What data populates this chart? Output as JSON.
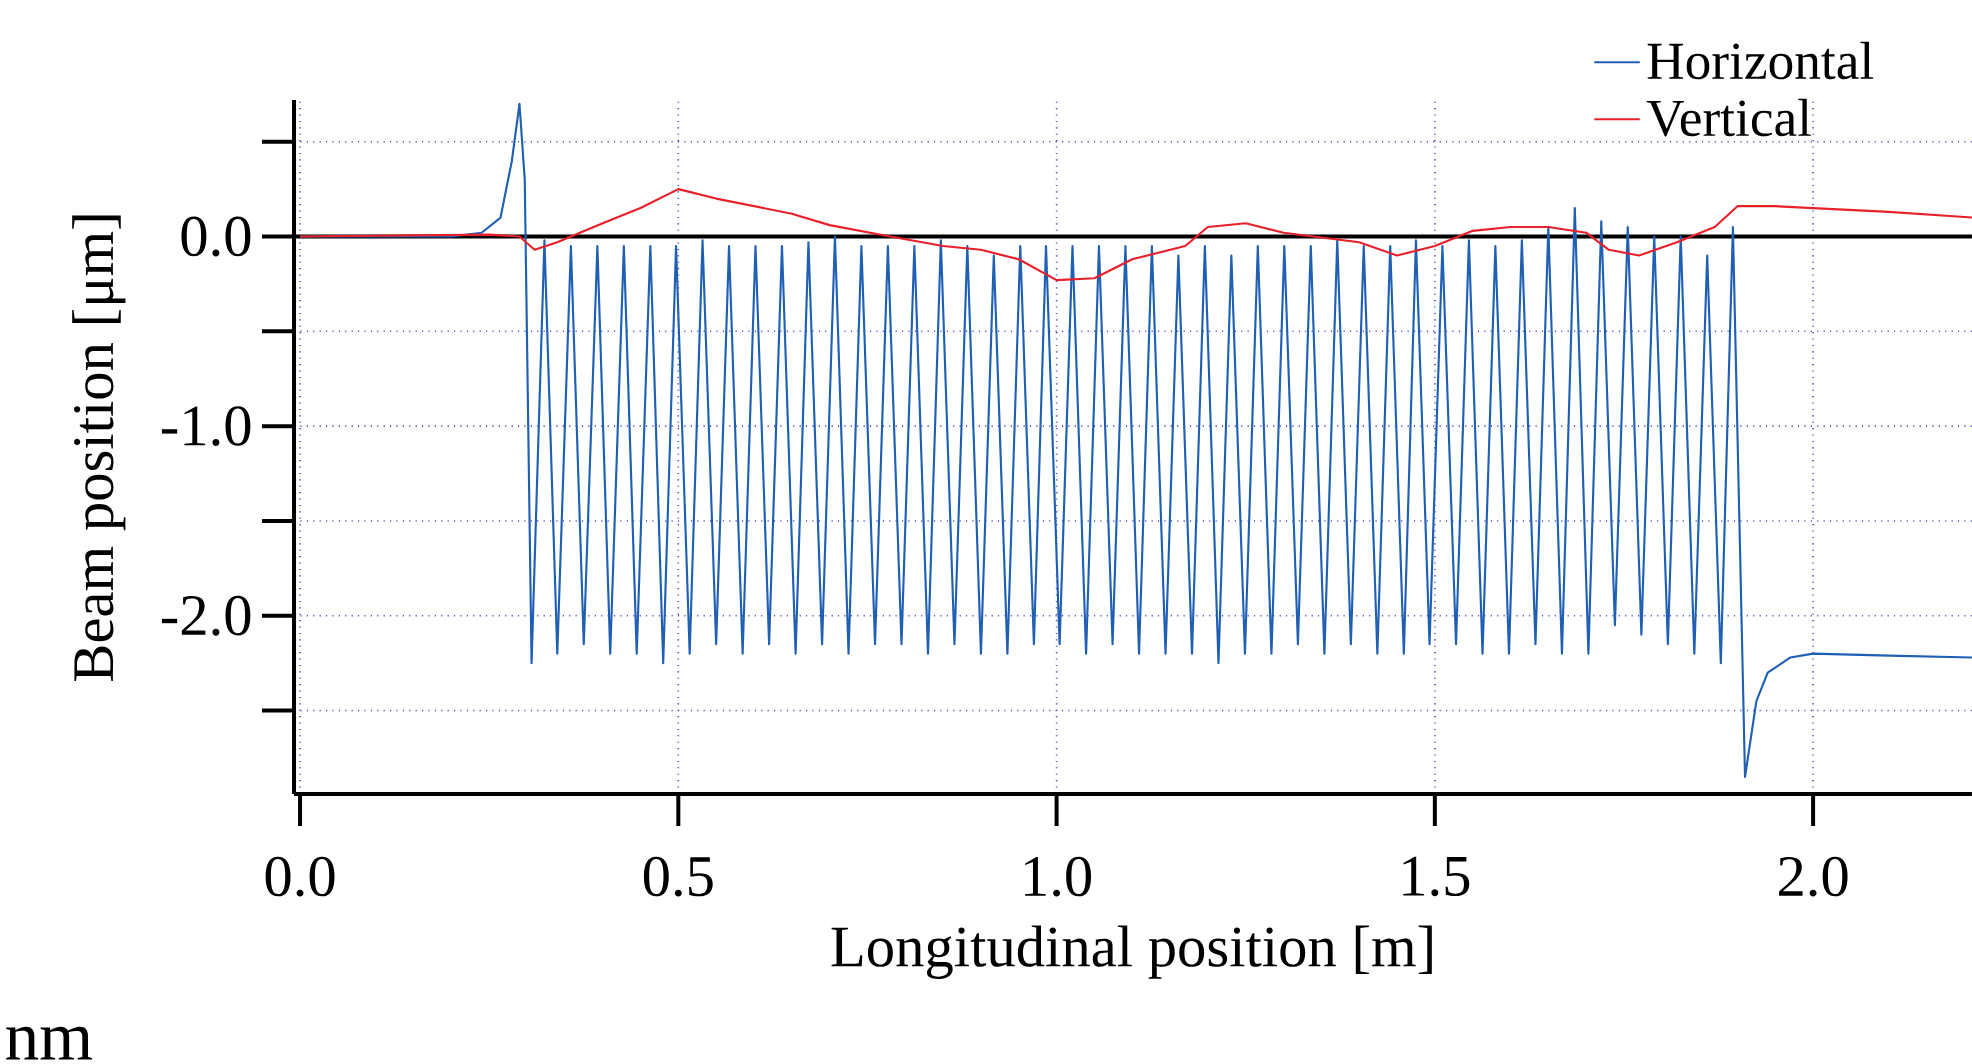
{
  "chart_data": {
    "type": "line",
    "xlabel": "Longitudinal position [m]",
    "ylabel": "Beam position [μm]",
    "annotations": [
      "nm"
    ],
    "xlim": [
      -0.008,
      2.21
    ],
    "ylim": [
      -2.94,
      0.72
    ],
    "xticks": [
      {
        "value": 0,
        "label": "0.0"
      },
      {
        "value": 0.5,
        "label": "0.5"
      },
      {
        "value": 1,
        "label": "1.0"
      },
      {
        "value": 1.5,
        "label": "1.5"
      },
      {
        "value": 2,
        "label": "2.0"
      }
    ],
    "yticks": [
      {
        "value": 0.5,
        "label": null
      },
      {
        "value": 0,
        "label": "0.0"
      },
      {
        "value": -0.5,
        "label": null
      },
      {
        "value": -1,
        "label": "-1.0"
      },
      {
        "value": -1.5,
        "label": null
      },
      {
        "value": -2,
        "label": "-2.0"
      },
      {
        "value": -2.5,
        "label": null
      }
    ],
    "grid": true,
    "legend": "top right",
    "line_style": "solid",
    "marker": "none",
    "ref_lines": [
      {
        "axis": "y",
        "value": 0,
        "color": "#000000"
      }
    ],
    "series": [
      {
        "name": "Horizontal",
        "color": "#1f5fb4",
        "x": [
          0,
          0.2,
          0.24,
          0.265,
          0.28,
          0.29,
          0.297,
          0.306,
          0.323,
          0.34,
          0.358,
          0.375,
          0.393,
          0.41,
          0.428,
          0.445,
          0.463,
          0.48,
          0.497,
          0.515,
          0.532,
          0.55,
          0.567,
          0.585,
          0.602,
          0.62,
          0.637,
          0.655,
          0.672,
          0.69,
          0.707,
          0.725,
          0.742,
          0.76,
          0.777,
          0.795,
          0.812,
          0.83,
          0.847,
          0.865,
          0.882,
          0.9,
          0.917,
          0.935,
          0.952,
          0.97,
          0.986,
          1.004,
          1.021,
          1.039,
          1.056,
          1.074,
          1.091,
          1.109,
          1.126,
          1.144,
          1.161,
          1.179,
          1.196,
          1.214,
          1.231,
          1.249,
          1.266,
          1.284,
          1.301,
          1.319,
          1.336,
          1.354,
          1.371,
          1.389,
          1.406,
          1.424,
          1.441,
          1.459,
          1.475,
          1.493,
          1.51,
          1.528,
          1.545,
          1.563,
          1.58,
          1.598,
          1.615,
          1.633,
          1.65,
          1.668,
          1.685,
          1.703,
          1.72,
          1.738,
          1.755,
          1.773,
          1.79,
          1.808,
          1.825,
          1.843,
          1.86,
          1.878,
          1.894,
          1.91,
          1.925,
          1.94,
          1.97,
          2.0,
          2.1,
          2.21
        ],
        "values": [
          0,
          0,
          0.02,
          0.1,
          0.4,
          0.7,
          0.3,
          -2.25,
          -0.02,
          -2.2,
          -0.05,
          -2.15,
          -0.05,
          -2.2,
          -0.05,
          -2.2,
          -0.05,
          -2.25,
          -0.05,
          -2.2,
          -0.02,
          -2.15,
          -0.05,
          -2.2,
          -0.05,
          -2.15,
          -0.05,
          -2.2,
          -0.03,
          -2.15,
          0.0,
          -2.2,
          -0.05,
          -2.15,
          -0.05,
          -2.15,
          -0.05,
          -2.2,
          -0.02,
          -2.15,
          -0.05,
          -2.2,
          -0.1,
          -2.2,
          -0.05,
          -2.15,
          -0.05,
          -2.15,
          -0.05,
          -2.2,
          -0.05,
          -2.15,
          -0.05,
          -2.2,
          -0.05,
          -2.2,
          -0.1,
          -2.2,
          -0.05,
          -2.25,
          -0.1,
          -2.2,
          -0.05,
          -2.2,
          -0.05,
          -2.15,
          -0.05,
          -2.2,
          -0.02,
          -2.15,
          -0.05,
          -2.2,
          -0.05,
          -2.2,
          -0.02,
          -2.15,
          -0.05,
          -2.15,
          -0.02,
          -2.2,
          -0.05,
          -2.2,
          -0.02,
          -2.15,
          0.05,
          -2.2,
          0.15,
          -2.2,
          0.08,
          -2.05,
          0.05,
          -2.1,
          0.0,
          -2.15,
          0.0,
          -2.2,
          -0.1,
          -2.25,
          0.05,
          -2.85,
          -2.45,
          -2.3,
          -2.22,
          -2.2,
          -2.21,
          -2.22
        ]
      },
      {
        "name": "Vertical",
        "color": "#e8202a",
        "x": [
          0,
          0.25,
          0.29,
          0.31,
          0.34,
          0.4,
          0.45,
          0.5,
          0.55,
          0.65,
          0.7,
          0.78,
          0.85,
          0.9,
          0.95,
          1.0,
          1.05,
          1.1,
          1.17,
          1.2,
          1.25,
          1.3,
          1.4,
          1.45,
          1.5,
          1.55,
          1.6,
          1.65,
          1.7,
          1.73,
          1.77,
          1.82,
          1.87,
          1.9,
          1.95,
          2.0,
          2.1,
          2.21
        ],
        "values": [
          0,
          0.01,
          0.0,
          -0.07,
          -0.03,
          0.07,
          0.15,
          0.25,
          0.2,
          0.12,
          0.06,
          0.0,
          -0.05,
          -0.07,
          -0.12,
          -0.23,
          -0.22,
          -0.12,
          -0.05,
          0.05,
          0.07,
          0.02,
          -0.03,
          -0.1,
          -0.05,
          0.03,
          0.05,
          0.05,
          0.02,
          -0.07,
          -0.1,
          -0.03,
          0.05,
          0.16,
          0.16,
          0.15,
          0.13,
          0.1
        ]
      }
    ]
  }
}
